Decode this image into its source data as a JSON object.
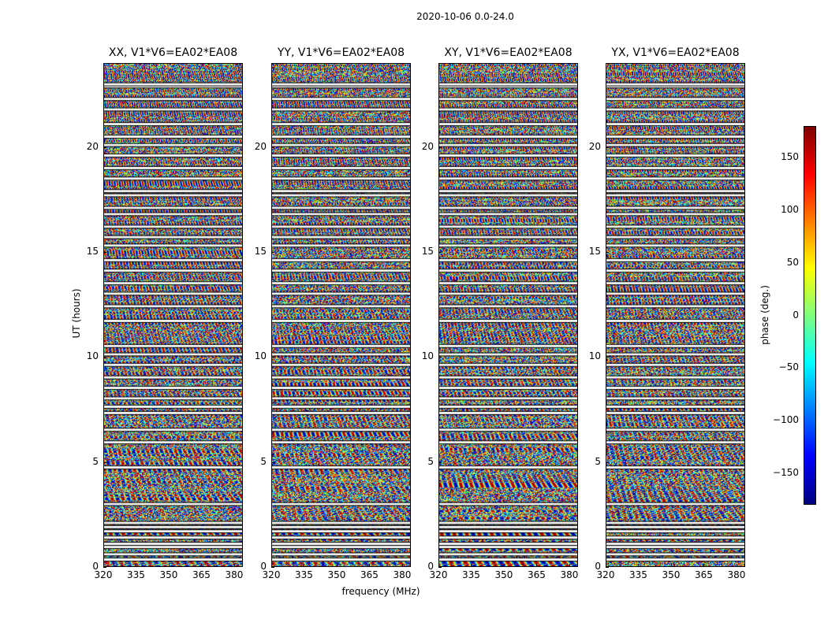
{
  "suptitle": "2020-10-06 0.0-24.0",
  "colors": {
    "colormap": [
      "#00007f",
      "#0000ff",
      "#007fff",
      "#00ffff",
      "#7fff7f",
      "#ffff00",
      "#ff7f00",
      "#ff0000",
      "#7f0000"
    ],
    "gap": "#ffffff",
    "line": "#000000"
  },
  "chart_data": {
    "type": "heatmap",
    "title": "2020-10-06 0.0-24.0",
    "xlabel": "frequency (MHz)",
    "ylabel": "UT (hours)",
    "xlim": [
      320,
      384
    ],
    "ylim": [
      0,
      24
    ],
    "xticks": [
      320,
      335,
      350,
      365,
      380
    ],
    "yticks": [
      0,
      5,
      10,
      15,
      20
    ],
    "colorbar": {
      "label": "phase (deg.)",
      "range": [
        -180,
        180
      ],
      "ticks": [
        150,
        100,
        50,
        0,
        -50,
        -100,
        -150
      ],
      "tick_labels": [
        "150",
        "100",
        "50",
        "0",
        "−50",
        "−100",
        "−150"
      ]
    },
    "panels": [
      {
        "title": "XX, V1*V6=EA02*EA08",
        "correlation": "XX"
      },
      {
        "title": "YY, V1*V6=EA02*EA08",
        "correlation": "YY"
      },
      {
        "title": "XY, V1*V6=EA02*EA08",
        "correlation": "XY"
      },
      {
        "title": "YX, V1*V6=EA02*EA08",
        "correlation": "YX"
      }
    ],
    "data_gaps_ut_hours": [
      0.3,
      0.55,
      0.9,
      1.05,
      1.35,
      1.65,
      1.85,
      2.05,
      2.95,
      4.7,
      5.9,
      6.5,
      7.3,
      7.6,
      8.0,
      8.5,
      9.0,
      9.6,
      10.1,
      10.5,
      11.7,
      12.4,
      13.0,
      13.5,
      14.1,
      14.6,
      15.3,
      15.7,
      16.2,
      16.8,
      17.1,
      17.7,
      17.9,
      18.5,
      19.0,
      19.6,
      20.1,
      20.5,
      21.1,
      21.8,
      22.3,
      22.9,
      23.0
    ]
  }
}
